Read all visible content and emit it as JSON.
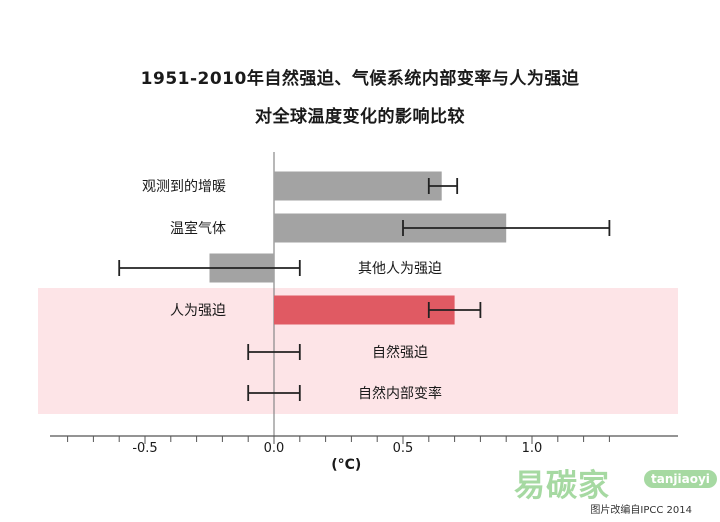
{
  "title_line1": "1951-2010年自然强迫、气候系统内部变率与人为强迫",
  "title_line2": "对全球温度变化的影响比较",
  "credit": "图片改编自IPCC 2014",
  "watermark": {
    "text": "易碳家",
    "site": "tanjiaoyi"
  },
  "colors": {
    "gray_bar": "#a3a3a3",
    "red_bar": "#e05a63",
    "highlight": "#fde4e7",
    "axis": "#555555",
    "errorbar": "#222222"
  },
  "chart_data": {
    "type": "bar",
    "orientation": "horizontal",
    "xlabel": "(°C)",
    "xlim": [
      -0.85,
      1.35
    ],
    "xticks": [
      -0.5,
      0.0,
      0.5,
      1.0
    ],
    "xtick_labels": [
      "-0.5",
      "0.0",
      "0.5",
      "1.0"
    ],
    "minor_tick_step": 0.1,
    "grid": false,
    "highlighted_group": [
      "人为强迫",
      "自然强迫",
      "自然内部变率"
    ],
    "categories": [
      "观测到的增暖",
      "温室气体",
      "其他人为强迫",
      "人为强迫",
      "自然强迫",
      "自然内部变率"
    ],
    "values": [
      0.65,
      0.9,
      -0.25,
      0.7,
      0.0,
      0.0
    ],
    "error_low": [
      0.6,
      0.5,
      -0.6,
      0.6,
      -0.1,
      -0.1
    ],
    "error_high": [
      0.71,
      1.3,
      0.1,
      0.8,
      0.1,
      0.1
    ],
    "label_side": [
      "left",
      "left",
      "right",
      "left",
      "right",
      "right"
    ],
    "bar_color": [
      "gray",
      "gray",
      "gray",
      "red",
      "gray",
      "gray"
    ]
  }
}
